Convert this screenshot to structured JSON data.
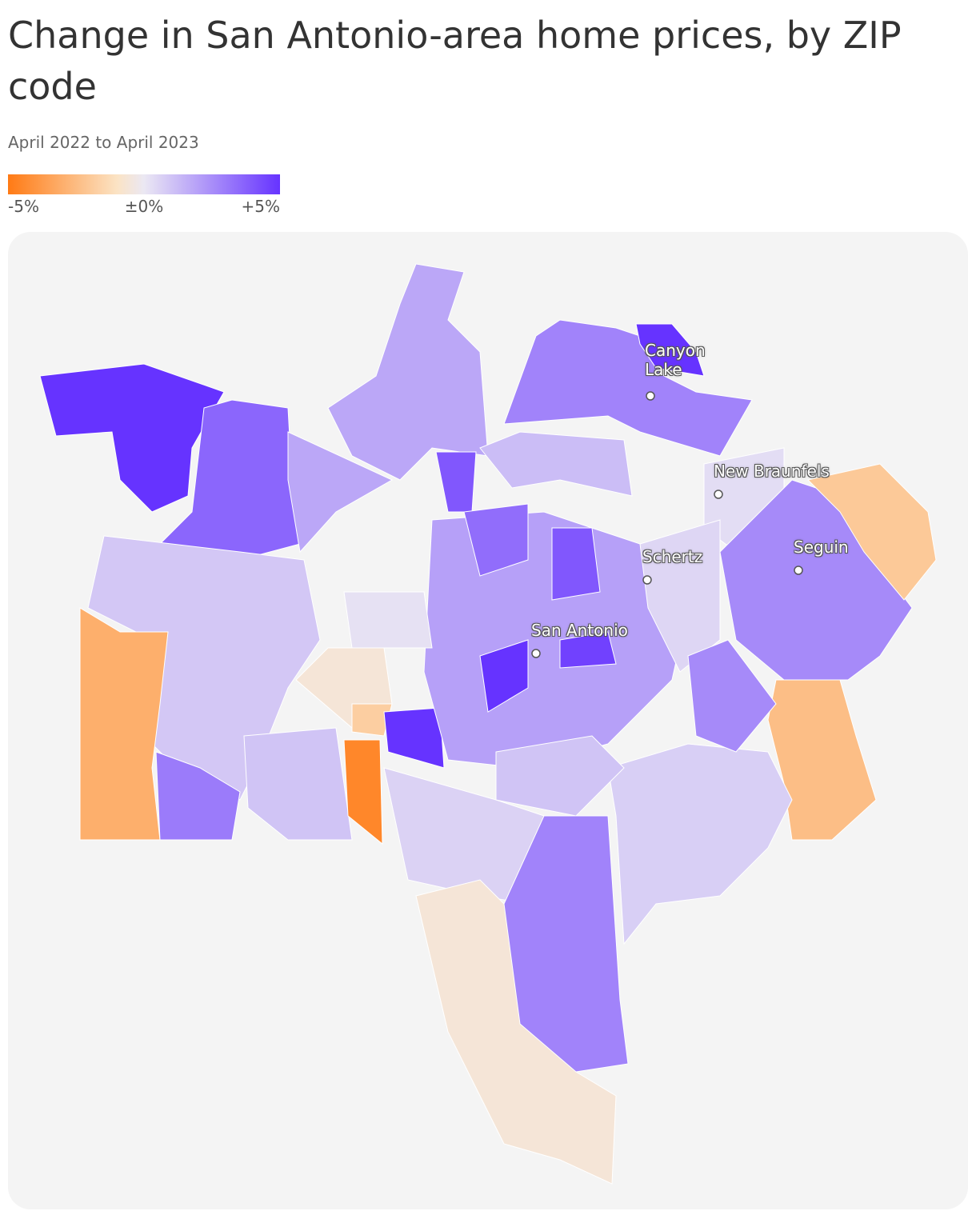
{
  "header": {
    "title": "Change in San Antonio-area home prices, by ZIP code",
    "subtitle": "April 2022 to April 2023"
  },
  "map": {
    "type": "choropleth",
    "scale": {
      "range": [
        -5,
        5
      ],
      "stops": [
        {
          "value": -5,
          "color": "#ff7a14"
        },
        {
          "value": -1,
          "color": "#fbe3c4"
        },
        {
          "value": 0,
          "color": "#ebe8f3"
        },
        {
          "value": 5,
          "color": "#6633ff"
        }
      ],
      "ticks": [
        {
          "value": -5,
          "label": "-5%"
        },
        {
          "value": 0,
          "label": "±0%"
        },
        {
          "value": 5,
          "label": "+5%"
        }
      ]
    },
    "values": [
      5,
      3.6,
      1.8,
      2.8,
      5,
      1.2,
      1.8,
      0.3,
      2.6,
      -2,
      -2.4,
      0.9,
      -3,
      3,
      1,
      -4.5,
      -0.6,
      -1.8,
      5,
      0.6,
      -0.6,
      2.8,
      0.7,
      2,
      5,
      4.6,
      0.5,
      4,
      3.4,
      4,
      0.2,
      1,
      2.6
    ],
    "places": [
      "Canyon Lake",
      "New Braunfels",
      "Schertz",
      "Seguin",
      "San Antonio"
    ]
  }
}
